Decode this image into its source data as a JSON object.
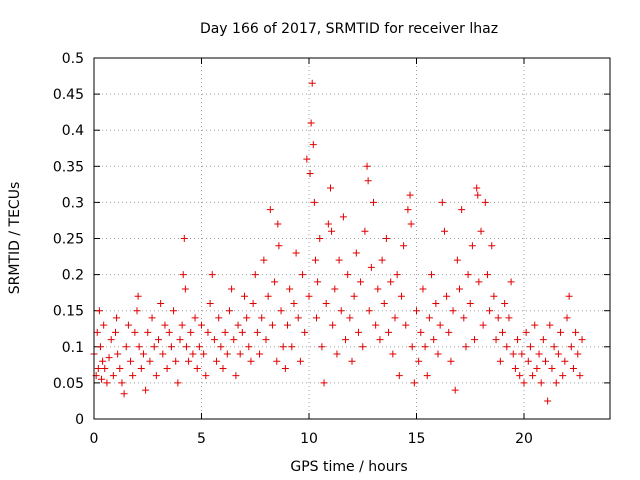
{
  "chart_data": {
    "type": "scatter",
    "title": "Day 166 of 2017, SRMTID for receiver lhaz",
    "xlabel": "GPS time / hours",
    "ylabel": "SRMTID / TECUs",
    "xlim": [
      0,
      24
    ],
    "ylim": [
      0,
      0.5
    ],
    "x_ticks": [
      0,
      5,
      10,
      15,
      20
    ],
    "x_tick_labels": [
      "0",
      "5",
      "10",
      "15",
      "20"
    ],
    "y_ticks": [
      0,
      0.05,
      0.1,
      0.15,
      0.2,
      0.25,
      0.3,
      0.35,
      0.4,
      0.45,
      0.5
    ],
    "y_tick_labels": [
      "0",
      "0.05",
      "0.1",
      "0.15",
      "0.2",
      "0.25",
      "0.3",
      "0.35",
      "0.4",
      "0.45",
      "0.5"
    ],
    "grid": true,
    "marker": "plus",
    "color": "#e00000",
    "series": [
      {
        "name": "SRMTID",
        "points": [
          [
            0.0,
            0.09
          ],
          [
            0.1,
            0.06
          ],
          [
            0.15,
            0.12
          ],
          [
            0.2,
            0.07
          ],
          [
            0.25,
            0.15
          ],
          [
            0.3,
            0.1
          ],
          [
            0.35,
            0.055
          ],
          [
            0.4,
            0.08
          ],
          [
            0.45,
            0.13
          ],
          [
            0.5,
            0.07
          ],
          [
            0.6,
            0.05
          ],
          [
            0.7,
            0.085
          ],
          [
            0.8,
            0.11
          ],
          [
            0.9,
            0.06
          ],
          [
            1.0,
            0.12
          ],
          [
            1.05,
            0.14
          ],
          [
            1.1,
            0.09
          ],
          [
            1.2,
            0.07
          ],
          [
            1.3,
            0.05
          ],
          [
            1.4,
            0.035
          ],
          [
            1.5,
            0.1
          ],
          [
            1.6,
            0.13
          ],
          [
            1.7,
            0.08
          ],
          [
            1.8,
            0.06
          ],
          [
            1.9,
            0.12
          ],
          [
            2.0,
            0.15
          ],
          [
            2.05,
            0.17
          ],
          [
            2.1,
            0.1
          ],
          [
            2.2,
            0.07
          ],
          [
            2.3,
            0.09
          ],
          [
            2.4,
            0.04
          ],
          [
            2.5,
            0.12
          ],
          [
            2.6,
            0.08
          ],
          [
            2.7,
            0.14
          ],
          [
            2.8,
            0.1
          ],
          [
            2.9,
            0.06
          ],
          [
            3.0,
            0.11
          ],
          [
            3.1,
            0.16
          ],
          [
            3.2,
            0.09
          ],
          [
            3.3,
            0.13
          ],
          [
            3.4,
            0.07
          ],
          [
            3.5,
            0.12
          ],
          [
            3.6,
            0.1
          ],
          [
            3.7,
            0.15
          ],
          [
            3.8,
            0.08
          ],
          [
            3.9,
            0.05
          ],
          [
            4.0,
            0.11
          ],
          [
            4.1,
            0.13
          ],
          [
            4.15,
            0.2
          ],
          [
            4.2,
            0.25
          ],
          [
            4.25,
            0.18
          ],
          [
            4.3,
            0.1
          ],
          [
            4.4,
            0.08
          ],
          [
            4.5,
            0.12
          ],
          [
            4.6,
            0.09
          ],
          [
            4.7,
            0.14
          ],
          [
            4.8,
            0.07
          ],
          [
            4.9,
            0.1
          ],
          [
            5.0,
            0.13
          ],
          [
            5.1,
            0.09
          ],
          [
            5.2,
            0.06
          ],
          [
            5.3,
            0.12
          ],
          [
            5.4,
            0.16
          ],
          [
            5.5,
            0.2
          ],
          [
            5.6,
            0.11
          ],
          [
            5.7,
            0.08
          ],
          [
            5.8,
            0.14
          ],
          [
            5.9,
            0.1
          ],
          [
            6.0,
            0.07
          ],
          [
            6.1,
            0.12
          ],
          [
            6.2,
            0.09
          ],
          [
            6.3,
            0.15
          ],
          [
            6.4,
            0.18
          ],
          [
            6.5,
            0.11
          ],
          [
            6.6,
            0.06
          ],
          [
            6.7,
            0.13
          ],
          [
            6.8,
            0.09
          ],
          [
            6.9,
            0.12
          ],
          [
            7.0,
            0.17
          ],
          [
            7.1,
            0.14
          ],
          [
            7.2,
            0.1
          ],
          [
            7.3,
            0.08
          ],
          [
            7.4,
            0.16
          ],
          [
            7.5,
            0.2
          ],
          [
            7.6,
            0.12
          ],
          [
            7.7,
            0.09
          ],
          [
            7.8,
            0.14
          ],
          [
            7.9,
            0.22
          ],
          [
            8.0,
            0.11
          ],
          [
            8.1,
            0.17
          ],
          [
            8.2,
            0.29
          ],
          [
            8.3,
            0.13
          ],
          [
            8.4,
            0.19
          ],
          [
            8.5,
            0.08
          ],
          [
            8.55,
            0.27
          ],
          [
            8.6,
            0.24
          ],
          [
            8.7,
            0.15
          ],
          [
            8.8,
            0.1
          ],
          [
            8.9,
            0.07
          ],
          [
            9.0,
            0.13
          ],
          [
            9.1,
            0.18
          ],
          [
            9.2,
            0.1
          ],
          [
            9.3,
            0.16
          ],
          [
            9.4,
            0.23
          ],
          [
            9.5,
            0.14
          ],
          [
            9.6,
            0.08
          ],
          [
            9.7,
            0.2
          ],
          [
            9.8,
            0.12
          ],
          [
            9.9,
            0.36
          ],
          [
            10.0,
            0.17
          ],
          [
            10.05,
            0.34
          ],
          [
            10.1,
            0.41
          ],
          [
            10.15,
            0.465
          ],
          [
            10.2,
            0.38
          ],
          [
            10.25,
            0.3
          ],
          [
            10.3,
            0.22
          ],
          [
            10.35,
            0.14
          ],
          [
            10.4,
            0.19
          ],
          [
            10.5,
            0.25
          ],
          [
            10.6,
            0.1
          ],
          [
            10.7,
            0.05
          ],
          [
            10.8,
            0.16
          ],
          [
            10.9,
            0.27
          ],
          [
            11.0,
            0.32
          ],
          [
            11.05,
            0.26
          ],
          [
            11.1,
            0.13
          ],
          [
            11.2,
            0.18
          ],
          [
            11.3,
            0.09
          ],
          [
            11.4,
            0.22
          ],
          [
            11.5,
            0.15
          ],
          [
            11.6,
            0.28
          ],
          [
            11.7,
            0.11
          ],
          [
            11.8,
            0.2
          ],
          [
            11.9,
            0.14
          ],
          [
            12.0,
            0.08
          ],
          [
            12.1,
            0.17
          ],
          [
            12.2,
            0.23
          ],
          [
            12.3,
            0.12
          ],
          [
            12.4,
            0.19
          ],
          [
            12.5,
            0.1
          ],
          [
            12.6,
            0.26
          ],
          [
            12.7,
            0.35
          ],
          [
            12.75,
            0.33
          ],
          [
            12.8,
            0.15
          ],
          [
            12.9,
            0.21
          ],
          [
            13.0,
            0.3
          ],
          [
            13.1,
            0.13
          ],
          [
            13.2,
            0.18
          ],
          [
            13.3,
            0.11
          ],
          [
            13.4,
            0.22
          ],
          [
            13.5,
            0.16
          ],
          [
            13.6,
            0.25
          ],
          [
            13.7,
            0.12
          ],
          [
            13.8,
            0.19
          ],
          [
            13.9,
            0.09
          ],
          [
            14.0,
            0.14
          ],
          [
            14.1,
            0.2
          ],
          [
            14.2,
            0.06
          ],
          [
            14.3,
            0.17
          ],
          [
            14.4,
            0.24
          ],
          [
            14.5,
            0.13
          ],
          [
            14.6,
            0.29
          ],
          [
            14.7,
            0.31
          ],
          [
            14.75,
            0.27
          ],
          [
            14.8,
            0.1
          ],
          [
            14.9,
            0.05
          ],
          [
            15.0,
            0.15
          ],
          [
            15.1,
            0.08
          ],
          [
            15.2,
            0.12
          ],
          [
            15.3,
            0.18
          ],
          [
            15.4,
            0.1
          ],
          [
            15.5,
            0.06
          ],
          [
            15.6,
            0.14
          ],
          [
            15.7,
            0.2
          ],
          [
            15.8,
            0.11
          ],
          [
            15.9,
            0.16
          ],
          [
            16.0,
            0.09
          ],
          [
            16.1,
            0.13
          ],
          [
            16.2,
            0.3
          ],
          [
            16.3,
            0.26
          ],
          [
            16.4,
            0.17
          ],
          [
            16.5,
            0.12
          ],
          [
            16.6,
            0.08
          ],
          [
            16.7,
            0.15
          ],
          [
            16.8,
            0.04
          ],
          [
            16.9,
            0.22
          ],
          [
            17.0,
            0.18
          ],
          [
            17.1,
            0.29
          ],
          [
            17.2,
            0.14
          ],
          [
            17.3,
            0.1
          ],
          [
            17.4,
            0.2
          ],
          [
            17.5,
            0.16
          ],
          [
            17.6,
            0.24
          ],
          [
            17.7,
            0.11
          ],
          [
            17.8,
            0.32
          ],
          [
            17.85,
            0.31
          ],
          [
            17.9,
            0.19
          ],
          [
            18.0,
            0.26
          ],
          [
            18.1,
            0.13
          ],
          [
            18.2,
            0.3
          ],
          [
            18.3,
            0.2
          ],
          [
            18.4,
            0.15
          ],
          [
            18.5,
            0.24
          ],
          [
            18.6,
            0.17
          ],
          [
            18.7,
            0.11
          ],
          [
            18.8,
            0.14
          ],
          [
            18.9,
            0.08
          ],
          [
            19.0,
            0.12
          ],
          [
            19.1,
            0.16
          ],
          [
            19.2,
            0.1
          ],
          [
            19.3,
            0.14
          ],
          [
            19.4,
            0.19
          ],
          [
            19.5,
            0.09
          ],
          [
            19.6,
            0.07
          ],
          [
            19.7,
            0.11
          ],
          [
            19.8,
            0.06
          ],
          [
            19.9,
            0.09
          ],
          [
            20.0,
            0.05
          ],
          [
            20.1,
            0.12
          ],
          [
            20.2,
            0.08
          ],
          [
            20.3,
            0.1
          ],
          [
            20.4,
            0.06
          ],
          [
            20.5,
            0.13
          ],
          [
            20.6,
            0.07
          ],
          [
            20.7,
            0.09
          ],
          [
            20.8,
            0.05
          ],
          [
            20.9,
            0.11
          ],
          [
            21.0,
            0.08
          ],
          [
            21.1,
            0.025
          ],
          [
            21.2,
            0.13
          ],
          [
            21.3,
            0.07
          ],
          [
            21.4,
            0.1
          ],
          [
            21.5,
            0.05
          ],
          [
            21.6,
            0.09
          ],
          [
            21.7,
            0.12
          ],
          [
            21.8,
            0.06
          ],
          [
            21.9,
            0.08
          ],
          [
            22.0,
            0.14
          ],
          [
            22.1,
            0.17
          ],
          [
            22.2,
            0.1
          ],
          [
            22.3,
            0.07
          ],
          [
            22.4,
            0.12
          ],
          [
            22.5,
            0.09
          ],
          [
            22.6,
            0.06
          ],
          [
            22.7,
            0.11
          ]
        ]
      }
    ]
  }
}
